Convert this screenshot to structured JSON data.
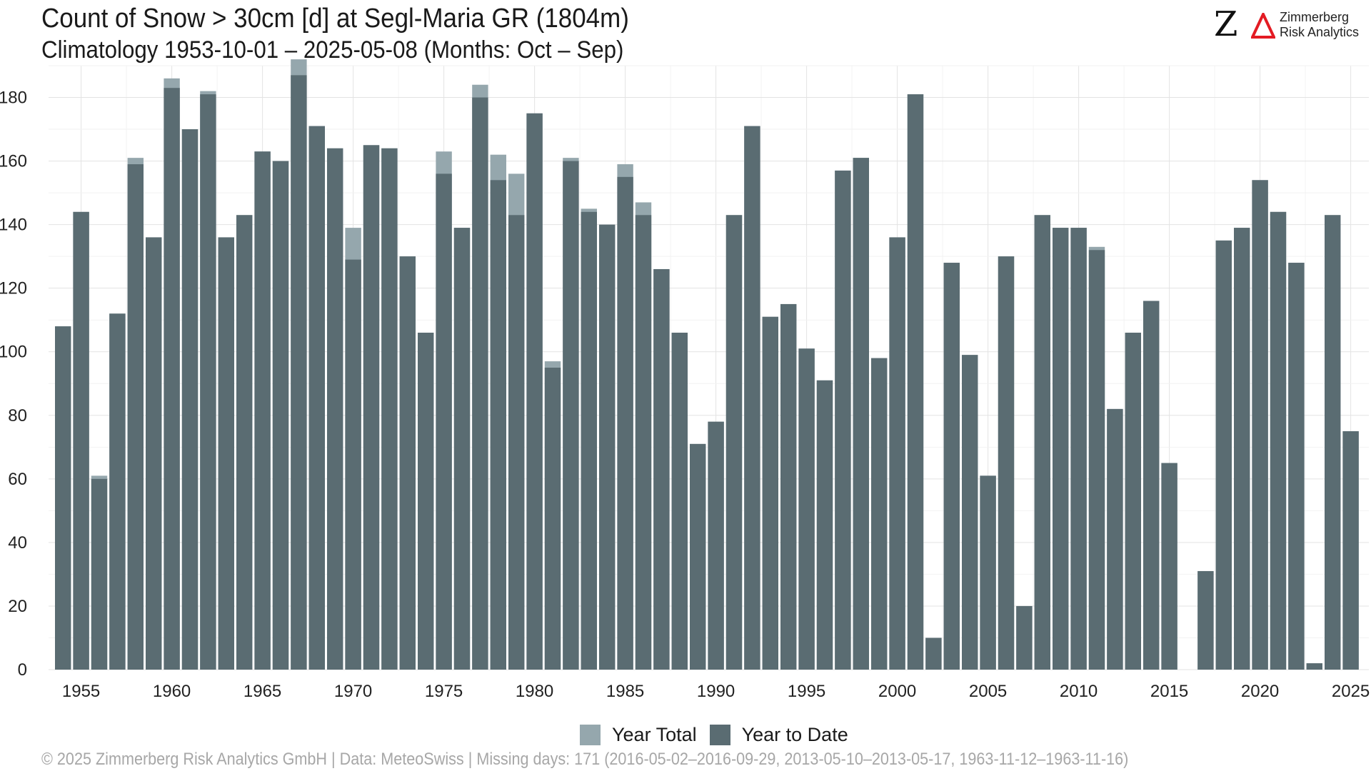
{
  "header": {
    "title": "Count of Snow > 30cm [d] at Segl-Maria  GR (1804m)",
    "subtitle": "Climatology 1953-10-01 – 2025-05-08 (Months: Oct – Sep)"
  },
  "logo": {
    "line1": "Zimmerberg",
    "line2": "Risk Analytics",
    "accent_color": "#e31b23"
  },
  "footer": {
    "text": "©  2025 Zimmerberg Risk Analytics GmbH | Data: MeteoSwiss | Missing days: 171 (2016-05-02–2016-09-29, 2013-05-10–2013-05-17, 1963-11-12–1963-11-16)"
  },
  "chart_data": {
    "type": "bar",
    "ylim": [
      0,
      190
    ],
    "yticks": [
      0,
      20,
      40,
      60,
      80,
      100,
      120,
      140,
      160,
      180
    ],
    "xticks": [
      1955,
      1960,
      1965,
      1970,
      1975,
      1980,
      1985,
      1990,
      1995,
      2000,
      2005,
      2010,
      2015,
      2020,
      2025
    ],
    "grid": true,
    "legend_position": "bottom",
    "categories": [
      1954,
      1955,
      1956,
      1957,
      1958,
      1959,
      1960,
      1961,
      1962,
      1963,
      1964,
      1965,
      1966,
      1967,
      1968,
      1969,
      1970,
      1971,
      1972,
      1973,
      1974,
      1975,
      1976,
      1977,
      1978,
      1979,
      1980,
      1981,
      1982,
      1983,
      1984,
      1985,
      1986,
      1987,
      1988,
      1989,
      1990,
      1991,
      1992,
      1993,
      1994,
      1995,
      1996,
      1997,
      1998,
      1999,
      2000,
      2001,
      2002,
      2003,
      2004,
      2005,
      2006,
      2007,
      2008,
      2009,
      2010,
      2011,
      2012,
      2013,
      2014,
      2015,
      2016,
      2017,
      2018,
      2019,
      2020,
      2021,
      2022,
      2023,
      2024,
      2025
    ],
    "series": [
      {
        "name": "Year Total",
        "color": "#95a7ad",
        "values": [
          108,
          144,
          61,
          112,
          161,
          136,
          186,
          170,
          182,
          136,
          143,
          163,
          160,
          192,
          171,
          164,
          139,
          165,
          164,
          130,
          106,
          163,
          139,
          184,
          162,
          156,
          175,
          97,
          161,
          145,
          140,
          159,
          147,
          126,
          106,
          71,
          78,
          143,
          171,
          111,
          115,
          101,
          91,
          157,
          161,
          98,
          136,
          181,
          10,
          128,
          99,
          61,
          130,
          20,
          143,
          139,
          139,
          133,
          82,
          106,
          116,
          65,
          0,
          31,
          135,
          139,
          154,
          144,
          128,
          2,
          143,
          75
        ]
      },
      {
        "name": "Year to Date",
        "color": "#5a6c72",
        "values": [
          108,
          144,
          60,
          112,
          159,
          136,
          183,
          170,
          181,
          136,
          143,
          163,
          160,
          187,
          171,
          164,
          129,
          165,
          164,
          130,
          106,
          156,
          139,
          180,
          154,
          143,
          175,
          95,
          160,
          144,
          140,
          155,
          143,
          126,
          106,
          71,
          78,
          143,
          171,
          111,
          115,
          101,
          91,
          157,
          161,
          98,
          136,
          181,
          10,
          128,
          99,
          61,
          130,
          20,
          143,
          139,
          139,
          132,
          82,
          106,
          116,
          65,
          0,
          31,
          135,
          139,
          154,
          144,
          128,
          2,
          143,
          75
        ]
      }
    ]
  }
}
